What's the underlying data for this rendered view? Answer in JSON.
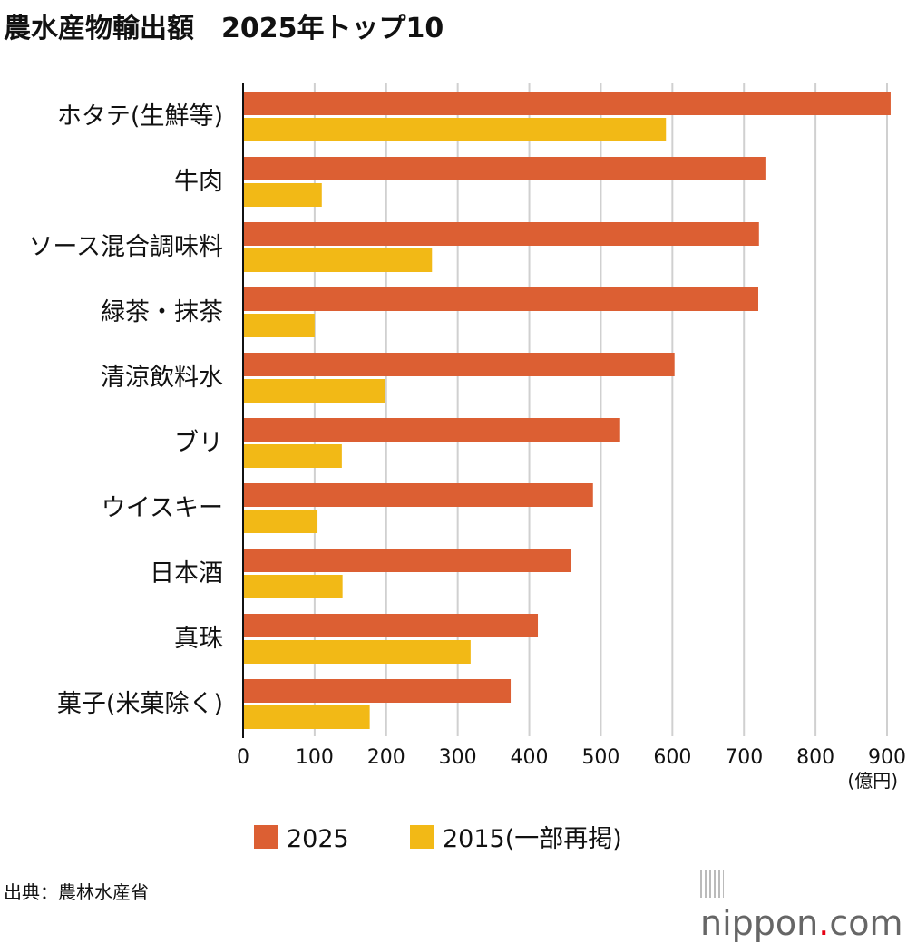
{
  "chart_data": {
    "type": "bar",
    "orientation": "horizontal",
    "title": "農水産物輸出額　2025年トップ10",
    "categories": [
      "ホタテ(生鮮等)",
      "牛肉",
      "ソース混合調味料",
      "緑茶・抹茶",
      "清涼飲料水",
      "ブリ",
      "ウイスキー",
      "日本酒",
      "真珠",
      "菓子(米菓除く)"
    ],
    "series": [
      {
        "name": "2025",
        "color": "#dc5f33",
        "values": [
          905,
          730,
          721,
          720,
          603,
          527,
          489,
          458,
          412,
          374
        ]
      },
      {
        "name": "2015(一部再掲)",
        "color": "#f2b916",
        "values": [
          591,
          110,
          264,
          100,
          198,
          138,
          104,
          139,
          318,
          177
        ]
      }
    ],
    "xlim": [
      0,
      900
    ],
    "xticks": [
      0,
      100,
      200,
      300,
      400,
      500,
      600,
      700,
      800,
      900
    ],
    "xunit": "(億円)",
    "grid": true,
    "legend": "bottom"
  },
  "source": "出典：農林水産省",
  "logo": {
    "name": "nippon",
    "dot": ".",
    "suffix": "com"
  }
}
